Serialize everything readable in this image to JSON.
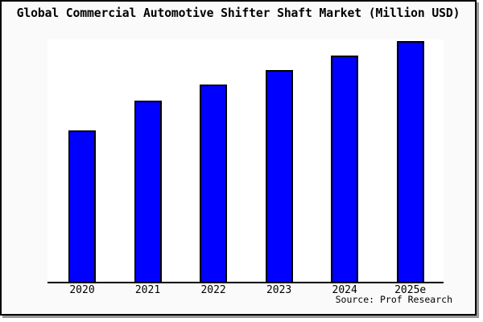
{
  "window": {
    "title": "Global Commercial Automotive Shifter Shaft Market (Million USD)"
  },
  "chart_data": {
    "type": "bar",
    "title": "Global Commercial Automotive Shifter Shaft Market (Million USD)",
    "categories": [
      "2020",
      "2021",
      "2022",
      "2023",
      "2024",
      "2025e"
    ],
    "values": [
      188,
      225,
      245,
      263,
      281,
      299
    ],
    "value_note": "y-axis has no ticks or labels; values are estimated relative units proportional to bar heights",
    "xlabel": "",
    "ylabel": "",
    "ylim": [
      0,
      301
    ],
    "grid": false,
    "legend": "none",
    "y_axis_ticks": "none",
    "source_note": "Source: Prof Research"
  },
  "colors": {
    "bar_fill": "#0000ff",
    "bar_border": "#000000",
    "frame_background": "#fafafa",
    "plot_background": "#ffffff",
    "frame_border": "#000000",
    "frame_shadow": "#999999",
    "text": "#000000"
  }
}
